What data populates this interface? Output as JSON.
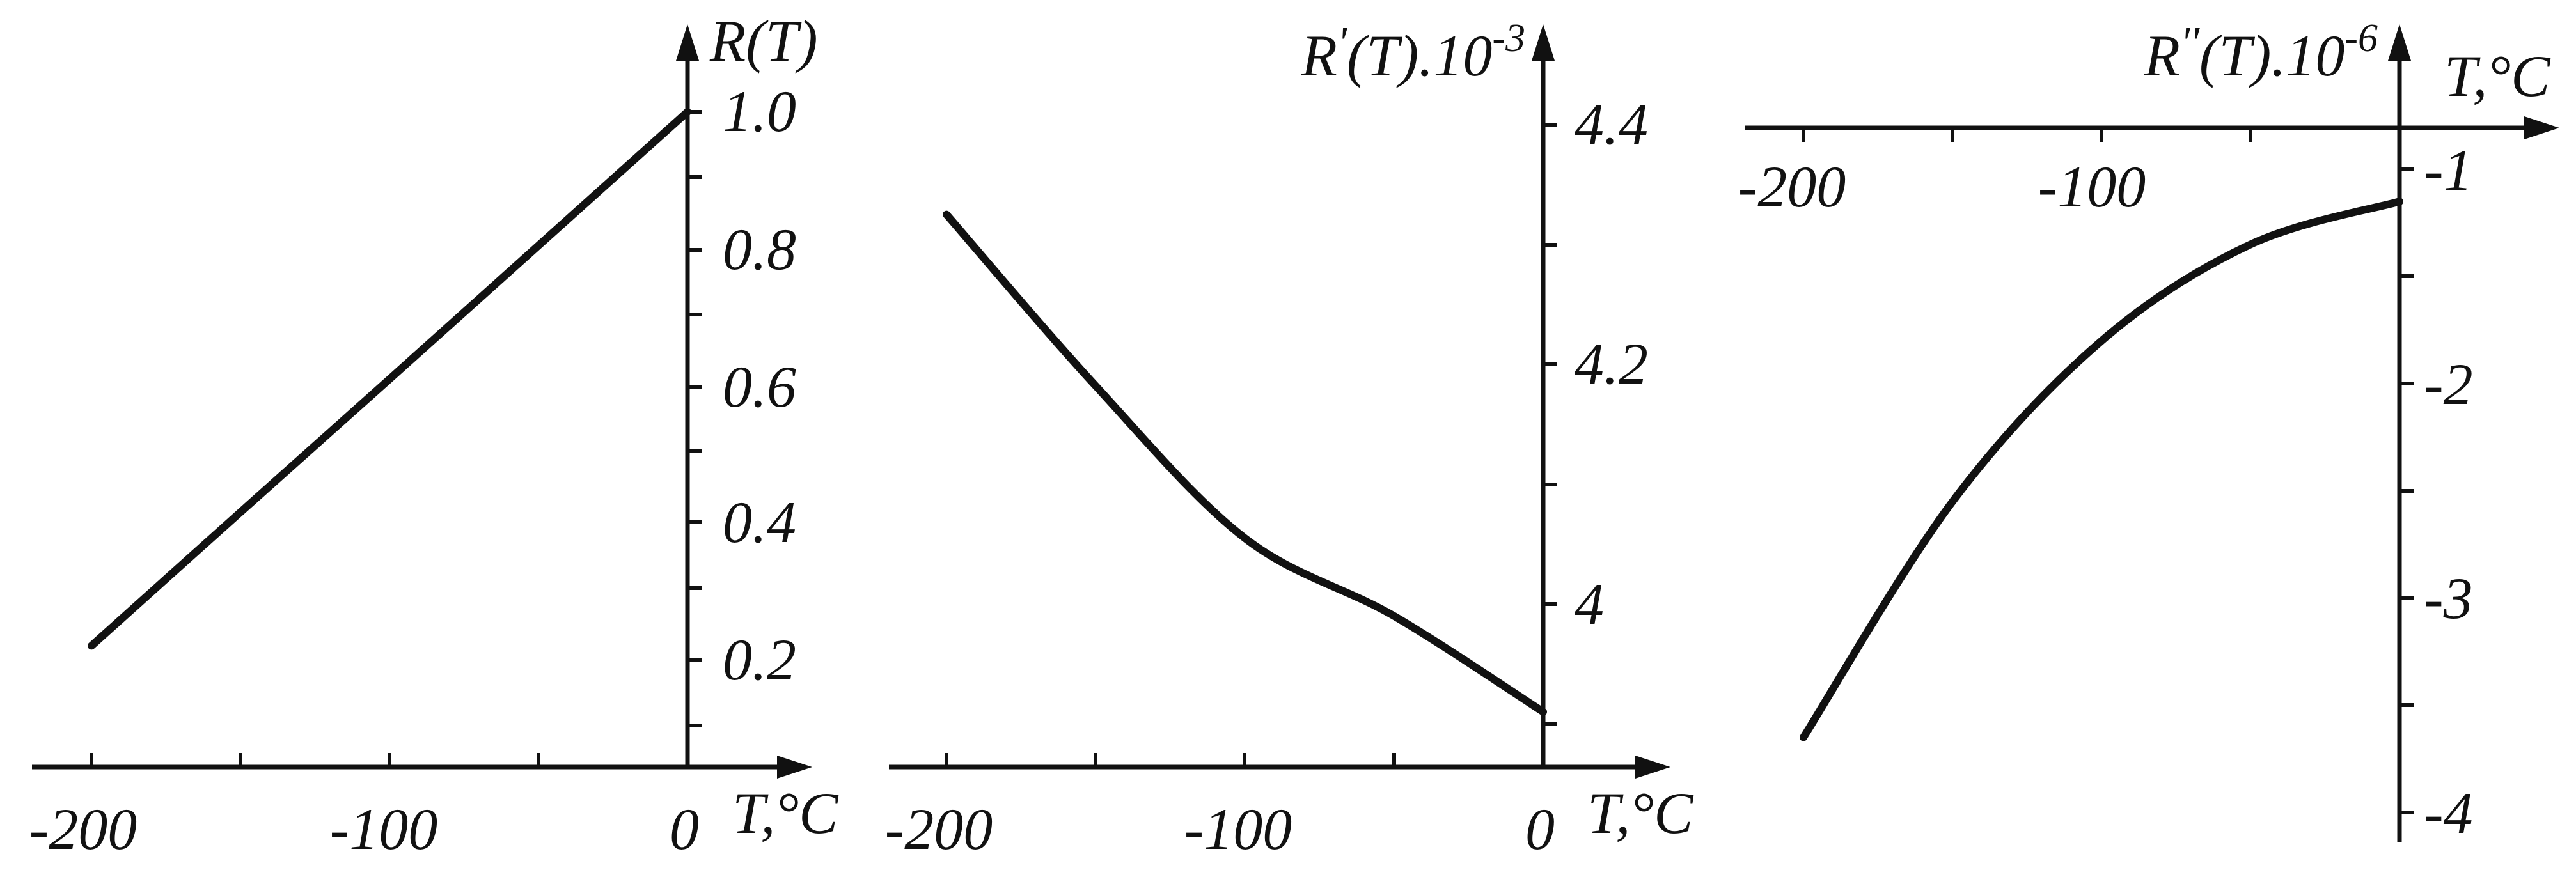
{
  "chart_data": [
    {
      "type": "line",
      "title": "",
      "xlabel": "T,°C",
      "ylabel": "R(T)",
      "xlim": [
        -200,
        0
      ],
      "ylim": [
        0,
        1.0
      ],
      "x_ticks": [
        "-200",
        "-100",
        "0"
      ],
      "y_ticks": [
        "0.2",
        "0.4",
        "0.6",
        "0.8",
        "1.0"
      ],
      "series": [
        {
          "x": [
            -200,
            -150,
            -100,
            -50,
            0
          ],
          "y": [
            0.185,
            0.389,
            0.592,
            0.796,
            1.0
          ]
        }
      ]
    },
    {
      "type": "line",
      "title": "",
      "xlabel": "T,°C",
      "ylabel_main": "R",
      "ylabel_prime": "'",
      "ylabel_suffix": "(T).10",
      "ylabel_exp": "-3",
      "xlim": [
        -200,
        0
      ],
      "ylim": [
        3.92,
        4.48
      ],
      "x_ticks": [
        "-200",
        "-100",
        "0"
      ],
      "y_ticks": [
        "4",
        "4.2",
        "4.4"
      ],
      "series": [
        {
          "x": [
            -200,
            -150,
            -100,
            -50,
            0
          ],
          "y": [
            4.325,
            4.182,
            4.055,
            3.99,
            3.91
          ]
        }
      ]
    },
    {
      "type": "line",
      "title": "",
      "xlabel": "T,°C",
      "ylabel_main": "R",
      "ylabel_prime": "''",
      "ylabel_suffix": "(T).10",
      "ylabel_exp": "-6",
      "xlim": [
        -200,
        0
      ],
      "ylim": [
        -4.1,
        0.3
      ],
      "x_ticks": [
        "-200",
        "-100"
      ],
      "y_ticks": [
        "-1",
        "-2",
        "-3",
        "-4"
      ],
      "series": [
        {
          "x": [
            -200,
            -150,
            -100,
            -50,
            0
          ],
          "y": [
            -3.65,
            -2.55,
            -1.8,
            -1.35,
            -1.15
          ]
        }
      ]
    }
  ]
}
